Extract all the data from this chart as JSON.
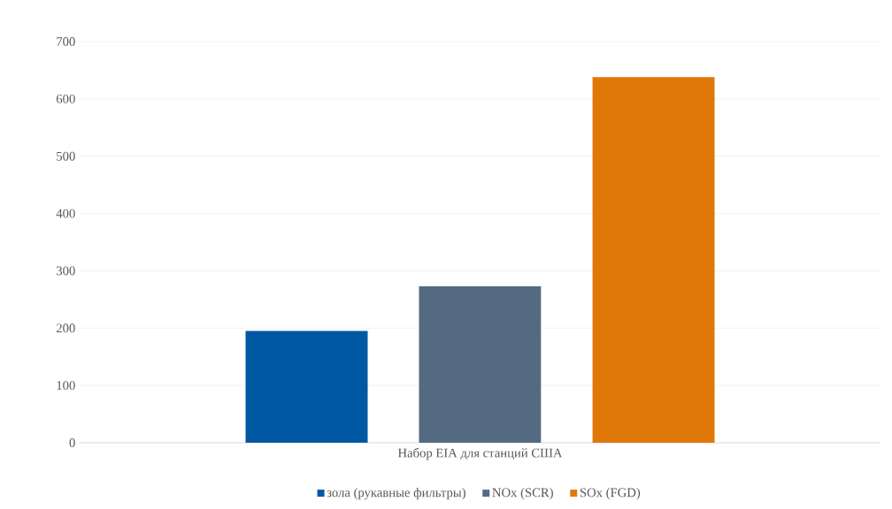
{
  "chart_data": {
    "type": "bar",
    "xlabel": "Набор EIA для станций США",
    "categories": [
      null
    ],
    "series": [
      {
        "name": "зола (рукавные фильтры)",
        "color": "#0058a3",
        "values": [
          195
        ]
      },
      {
        "name": "NOx (SCR)",
        "color": "#546a80",
        "values": [
          273
        ]
      },
      {
        "name": "SOx (FGD)",
        "color": "#e07808",
        "values": [
          638
        ]
      }
    ],
    "ylim": [
      0,
      700
    ],
    "yticks": [
      0,
      100,
      200,
      300,
      400,
      500,
      600,
      700
    ],
    "grid": "y",
    "legend": "bottom"
  }
}
